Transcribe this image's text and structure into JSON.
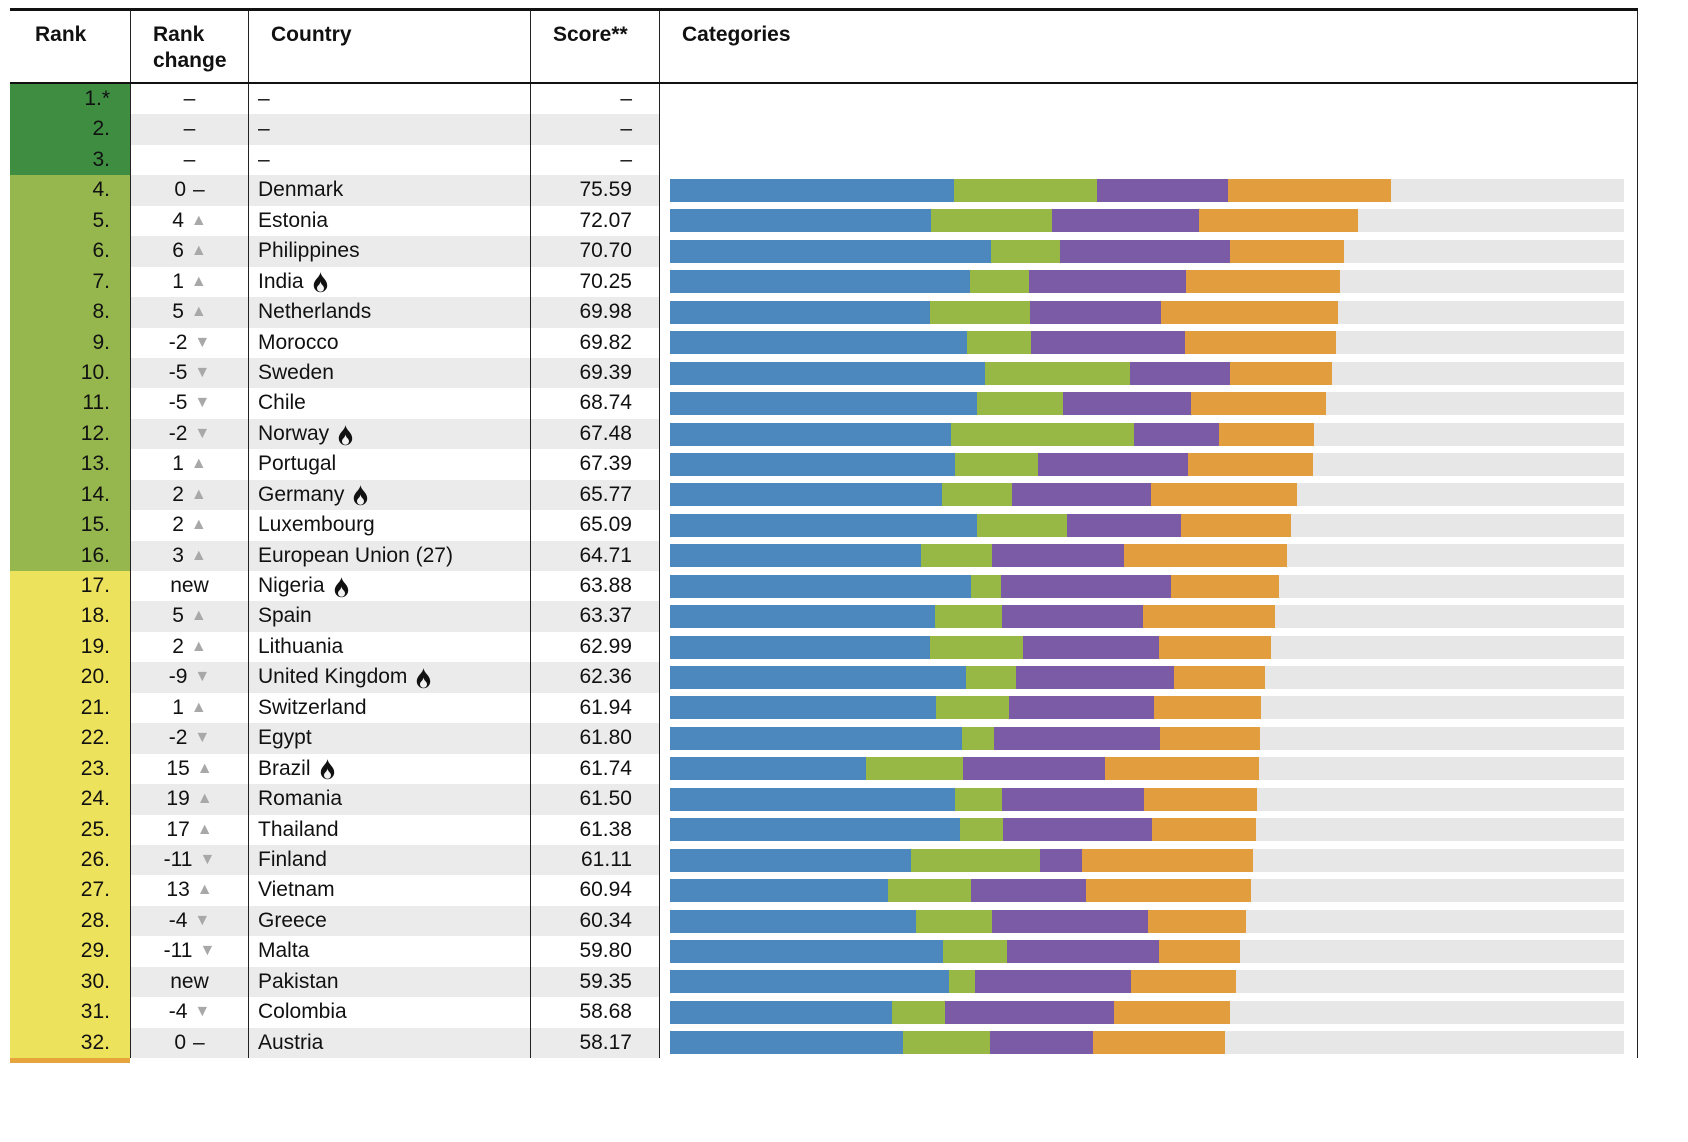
{
  "header": {
    "rank": "Rank",
    "rank_change": "Rank change",
    "country": "Country",
    "score": "Score**",
    "categories": "Categories"
  },
  "colors": {
    "tier_dark_green": "#3e8d41",
    "tier_green": "#95b74d",
    "tier_yellow": "#ede25c",
    "tier_next_orange": "#e7a33c",
    "bar_blue": "#4c87bd",
    "bar_green": "#98b845",
    "bar_purple": "#7b5ba6",
    "bar_orange": "#e29d3e",
    "row_stripe": "#ebebeb",
    "bar_track": "#e7e7e7",
    "triangle_gray": "#a8a8a8"
  },
  "rows": [
    {
      "rank": "1.*",
      "tier": "dark",
      "change": "–",
      "dir": "none",
      "country": "–",
      "flame": false,
      "score": "–",
      "seg": null
    },
    {
      "rank": "2.",
      "tier": "dark",
      "change": "–",
      "dir": "none",
      "country": "–",
      "flame": false,
      "score": "–",
      "seg": null
    },
    {
      "rank": "3.",
      "tier": "dark",
      "change": "–",
      "dir": "none",
      "country": "–",
      "flame": false,
      "score": "–",
      "seg": null
    },
    {
      "rank": "4.",
      "tier": "green",
      "change": "0",
      "dir": "dash",
      "country": "Denmark",
      "flame": false,
      "score": "75.59",
      "seg": [
        29.8,
        15.0,
        13.7,
        17.09
      ]
    },
    {
      "rank": "5.",
      "tier": "green",
      "change": "4",
      "dir": "up",
      "country": "Estonia",
      "flame": false,
      "score": "72.07",
      "seg": [
        27.4,
        12.6,
        15.5,
        16.57
      ]
    },
    {
      "rank": "6.",
      "tier": "green",
      "change": "6",
      "dir": "up",
      "country": "Philippines",
      "flame": false,
      "score": "70.70",
      "seg": [
        33.7,
        7.2,
        17.8,
        12.0
      ]
    },
    {
      "rank": "7.",
      "tier": "green",
      "change": "1",
      "dir": "up",
      "country": "India",
      "flame": true,
      "score": "70.25",
      "seg": [
        31.4,
        6.2,
        16.5,
        16.15
      ]
    },
    {
      "rank": "8.",
      "tier": "green",
      "change": "5",
      "dir": "up",
      "country": "Netherlands",
      "flame": false,
      "score": "69.98",
      "seg": [
        27.3,
        10.4,
        13.8,
        18.48
      ]
    },
    {
      "rank": "9.",
      "tier": "green",
      "change": "-2",
      "dir": "down",
      "country": "Morocco",
      "flame": false,
      "score": "69.82",
      "seg": [
        31.1,
        6.7,
        16.2,
        15.82
      ]
    },
    {
      "rank": "10.",
      "tier": "green",
      "change": "-5",
      "dir": "down",
      "country": "Sweden",
      "flame": false,
      "score": "69.39",
      "seg": [
        33.0,
        15.2,
        10.5,
        10.69
      ]
    },
    {
      "rank": "11.",
      "tier": "green",
      "change": "-5",
      "dir": "down",
      "country": "Chile",
      "flame": false,
      "score": "68.74",
      "seg": [
        32.2,
        9.0,
        13.4,
        14.14
      ]
    },
    {
      "rank": "12.",
      "tier": "green",
      "change": "-2",
      "dir": "down",
      "country": "Norway",
      "flame": true,
      "score": "67.48",
      "seg": [
        29.5,
        19.1,
        8.9,
        9.98
      ]
    },
    {
      "rank": "13.",
      "tier": "green",
      "change": "1",
      "dir": "up",
      "country": "Portugal",
      "flame": false,
      "score": "67.39",
      "seg": [
        29.9,
        8.7,
        15.7,
        13.09
      ]
    },
    {
      "rank": "14.",
      "tier": "green",
      "change": "2",
      "dir": "up",
      "country": "Germany",
      "flame": true,
      "score": "65.77",
      "seg": [
        28.5,
        7.4,
        14.5,
        15.37
      ]
    },
    {
      "rank": "15.",
      "tier": "green",
      "change": "2",
      "dir": "up",
      "country": "Luxembourg",
      "flame": false,
      "score": "65.09",
      "seg": [
        32.2,
        9.4,
        12.0,
        11.49
      ]
    },
    {
      "rank": "16.",
      "tier": "green",
      "change": "3",
      "dir": "up",
      "country": "European Union (27)",
      "flame": false,
      "score": "64.71",
      "seg": [
        26.3,
        7.5,
        13.8,
        17.11
      ]
    },
    {
      "rank": "17.",
      "tier": "yellow",
      "change": "new",
      "dir": "none",
      "country": "Nigeria",
      "flame": true,
      "score": "63.88",
      "seg": [
        31.6,
        3.1,
        17.8,
        11.38
      ]
    },
    {
      "rank": "18.",
      "tier": "yellow",
      "change": "5",
      "dir": "up",
      "country": "Spain",
      "flame": false,
      "score": "63.37",
      "seg": [
        27.8,
        7.0,
        14.8,
        13.77
      ]
    },
    {
      "rank": "19.",
      "tier": "yellow",
      "change": "2",
      "dir": "up",
      "country": "Lithuania",
      "flame": false,
      "score": "62.99",
      "seg": [
        27.3,
        9.7,
        14.3,
        11.69
      ]
    },
    {
      "rank": "20.",
      "tier": "yellow",
      "change": "-9",
      "dir": "down",
      "country": "United Kingdom",
      "flame": true,
      "score": "62.36",
      "seg": [
        31.0,
        5.3,
        16.5,
        9.56
      ]
    },
    {
      "rank": "21.",
      "tier": "yellow",
      "change": "1",
      "dir": "up",
      "country": "Switzerland",
      "flame": false,
      "score": "61.94",
      "seg": [
        27.9,
        7.6,
        15.2,
        11.24
      ]
    },
    {
      "rank": "22.",
      "tier": "yellow",
      "change": "-2",
      "dir": "down",
      "country": "Egypt",
      "flame": false,
      "score": "61.80",
      "seg": [
        30.6,
        3.4,
        17.4,
        10.4
      ]
    },
    {
      "rank": "23.",
      "tier": "yellow",
      "change": "15",
      "dir": "up",
      "country": "Brazil",
      "flame": true,
      "score": "61.74",
      "seg": [
        20.5,
        10.2,
        14.9,
        16.14
      ]
    },
    {
      "rank": "24.",
      "tier": "yellow",
      "change": "19",
      "dir": "up",
      "country": "Romania",
      "flame": false,
      "score": "61.50",
      "seg": [
        29.9,
        4.9,
        14.9,
        11.8
      ]
    },
    {
      "rank": "25.",
      "tier": "yellow",
      "change": "17",
      "dir": "up",
      "country": "Thailand",
      "flame": false,
      "score": "61.38",
      "seg": [
        30.4,
        4.5,
        15.6,
        10.88
      ]
    },
    {
      "rank": "26.",
      "tier": "yellow",
      "change": "-11",
      "dir": "down",
      "country": "Finland",
      "flame": false,
      "score": "61.11",
      "seg": [
        25.3,
        13.5,
        4.4,
        17.91
      ]
    },
    {
      "rank": "27.",
      "tier": "yellow",
      "change": "13",
      "dir": "up",
      "country": "Vietnam",
      "flame": false,
      "score": "60.94",
      "seg": [
        22.8,
        8.8,
        12.0,
        17.34
      ]
    },
    {
      "rank": "28.",
      "tier": "yellow",
      "change": "-4",
      "dir": "down",
      "country": "Greece",
      "flame": false,
      "score": "60.34",
      "seg": [
        25.8,
        8.0,
        16.3,
        10.24
      ]
    },
    {
      "rank": "29.",
      "tier": "yellow",
      "change": "-11",
      "dir": "down",
      "country": "Malta",
      "flame": false,
      "score": "59.80",
      "seg": [
        28.6,
        6.7,
        16.0,
        8.5
      ]
    },
    {
      "rank": "30.",
      "tier": "yellow",
      "change": "new",
      "dir": "none",
      "country": "Pakistan",
      "flame": false,
      "score": "59.35",
      "seg": [
        29.2,
        2.8,
        16.3,
        11.05
      ]
    },
    {
      "rank": "31.",
      "tier": "yellow",
      "change": "-4",
      "dir": "down",
      "country": "Colombia",
      "flame": false,
      "score": "58.68",
      "seg": [
        23.3,
        5.5,
        17.7,
        12.18
      ]
    },
    {
      "rank": "32.",
      "tier": "yellow",
      "change": "0",
      "dir": "dash",
      "country": "Austria",
      "flame": false,
      "score": "58.17",
      "seg": [
        24.4,
        9.1,
        10.8,
        13.87
      ]
    }
  ],
  "chart_data": {
    "type": "bar",
    "stacked": true,
    "orientation": "horizontal",
    "title": "Categories",
    "xlim": [
      0,
      100
    ],
    "grid": false,
    "legend": "none",
    "categories": [
      "Denmark",
      "Estonia",
      "Philippines",
      "India",
      "Netherlands",
      "Morocco",
      "Sweden",
      "Chile",
      "Norway",
      "Portugal",
      "Germany",
      "Luxembourg",
      "European Union (27)",
      "Nigeria",
      "Spain",
      "Lithuania",
      "United Kingdom",
      "Switzerland",
      "Egypt",
      "Brazil",
      "Romania",
      "Thailand",
      "Finland",
      "Vietnam",
      "Greece",
      "Malta",
      "Pakistan",
      "Colombia",
      "Austria"
    ],
    "totals": [
      75.59,
      72.07,
      70.7,
      70.25,
      69.98,
      69.82,
      69.39,
      68.74,
      67.48,
      67.39,
      65.77,
      65.09,
      64.71,
      63.88,
      63.37,
      62.99,
      62.36,
      61.94,
      61.8,
      61.74,
      61.5,
      61.38,
      61.11,
      60.94,
      60.34,
      59.8,
      59.35,
      58.68,
      58.17
    ],
    "series": [
      {
        "name": "blue-segment",
        "color": "#4c87bd",
        "values": [
          29.8,
          27.4,
          33.7,
          31.4,
          27.3,
          31.1,
          33.0,
          32.2,
          29.5,
          29.9,
          28.5,
          32.2,
          26.3,
          31.6,
          27.8,
          27.3,
          31.0,
          27.9,
          30.6,
          20.5,
          29.9,
          30.4,
          25.3,
          22.8,
          25.8,
          28.6,
          29.2,
          23.3,
          24.4
        ]
      },
      {
        "name": "green-segment",
        "color": "#98b845",
        "values": [
          15.0,
          12.6,
          7.2,
          6.2,
          10.4,
          6.7,
          15.2,
          9.0,
          19.1,
          8.7,
          7.4,
          9.4,
          7.5,
          3.1,
          7.0,
          9.7,
          5.3,
          7.6,
          3.4,
          10.2,
          4.9,
          4.5,
          13.5,
          8.8,
          8.0,
          6.7,
          2.8,
          5.5,
          9.1
        ]
      },
      {
        "name": "purple-segment",
        "color": "#7b5ba6",
        "values": [
          13.7,
          15.5,
          17.8,
          16.5,
          13.8,
          16.2,
          10.5,
          13.4,
          8.9,
          15.7,
          14.5,
          12.0,
          13.8,
          17.8,
          14.8,
          14.3,
          16.5,
          15.2,
          17.4,
          14.9,
          14.9,
          15.6,
          4.4,
          12.0,
          16.3,
          16.0,
          16.3,
          17.7,
          10.8
        ]
      },
      {
        "name": "orange-segment",
        "color": "#e29d3e",
        "values": [
          17.09,
          16.57,
          12.0,
          16.15,
          18.48,
          15.82,
          10.69,
          14.14,
          9.98,
          13.09,
          15.37,
          11.49,
          17.11,
          11.38,
          13.77,
          11.69,
          9.56,
          11.24,
          10.4,
          16.14,
          11.8,
          10.88,
          17.91,
          17.34,
          10.24,
          8.5,
          11.05,
          12.18,
          13.87
        ]
      }
    ]
  }
}
